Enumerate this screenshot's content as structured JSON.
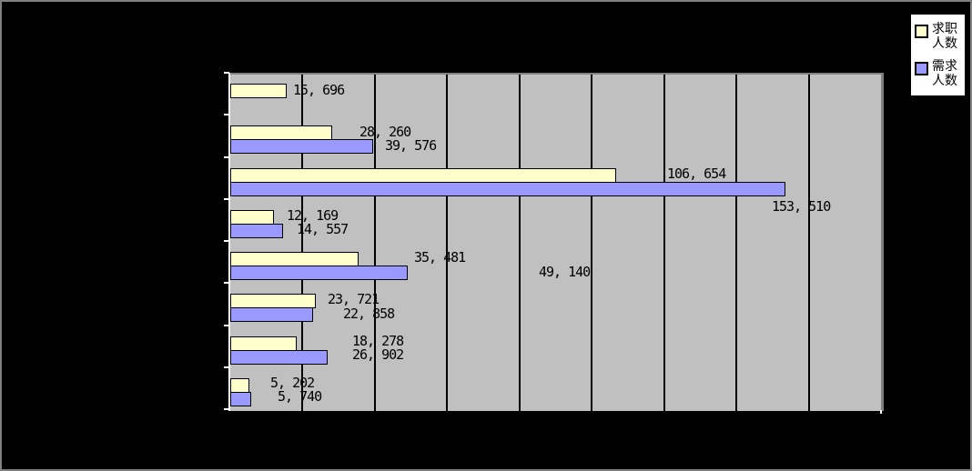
{
  "colors": {
    "background": "#000000",
    "frame_border": "#808080",
    "plot_bg": "#C0C0C0",
    "plot_border": "#808080",
    "gridline": "#000000",
    "axis": "#FFFFFF",
    "label_text": "#000000",
    "legend_bg": "#FFFFFF",
    "legend_border": "#000000",
    "series1_fill": "#FFFFCC",
    "series2_fill": "#9999FF"
  },
  "legend": {
    "items": [
      {
        "label": "求职人数",
        "color": "#FFFFCC"
      },
      {
        "label": "需求人数",
        "color": "#9999FF"
      }
    ]
  },
  "chart_data": {
    "type": "bar",
    "orientation": "horizontal",
    "title": "",
    "xlabel": "",
    "ylabel": "",
    "categories": [
      "",
      "",
      "",
      "",
      "",
      "",
      "",
      ""
    ],
    "xlim": [
      0,
      180000
    ],
    "grid": true,
    "grid_interval": 20000,
    "legend_position": "top-right",
    "series": [
      {
        "name": "求职人数",
        "color": "#FFFFCC",
        "values": [
          15696,
          28260,
          106654,
          12169,
          35481,
          23721,
          18278,
          5202
        ],
        "data_labels": [
          "15, 696",
          "28, 260",
          "106, 654",
          "12, 169",
          "35, 481",
          "23, 721",
          "18, 278",
          "5, 202"
        ],
        "label_positions": [
          {
            "x": 322,
            "y": 97
          },
          {
            "x": 395,
            "y": 143
          },
          {
            "x": 733,
            "y": 189
          },
          {
            "x": 315,
            "y": 235
          },
          {
            "x": 455,
            "y": 281
          },
          {
            "x": 360,
            "y": 327
          },
          {
            "x": 387,
            "y": 373
          },
          {
            "x": 297,
            "y": 419
          }
        ]
      },
      {
        "name": "需求人数",
        "color": "#9999FF",
        "values": [
          null,
          39576,
          153510,
          14557,
          49140,
          22858,
          26902,
          5740
        ],
        "data_labels": [
          null,
          "39, 576",
          "153, 510",
          "14, 557",
          "49, 140",
          "22, 858",
          "26, 902",
          "5, 740"
        ],
        "label_positions": [
          null,
          {
            "x": 423,
            "y": 158
          },
          {
            "x": 848,
            "y": 225
          },
          {
            "x": 326,
            "y": 250
          },
          {
            "x": 592,
            "y": 297
          },
          {
            "x": 377,
            "y": 343
          },
          {
            "x": 387,
            "y": 388
          },
          {
            "x": 305,
            "y": 434
          }
        ]
      }
    ]
  }
}
